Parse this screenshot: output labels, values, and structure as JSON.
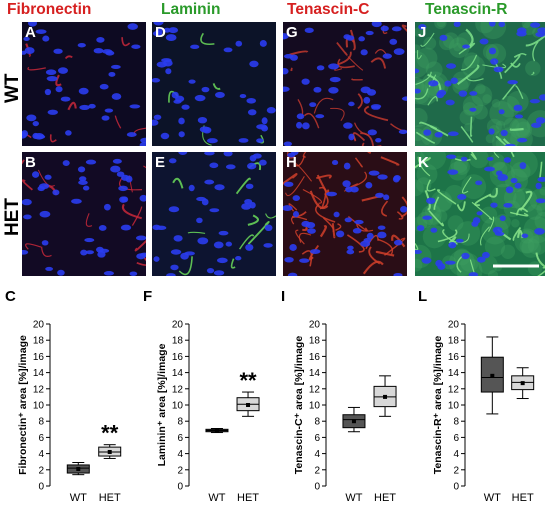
{
  "headers": [
    {
      "text": "Fibronectin",
      "color": "#d62020"
    },
    {
      "text": "Laminin",
      "color": "#2a9a2a"
    },
    {
      "text": "Tenascin-C",
      "color": "#d62020"
    },
    {
      "text": "Tenascin-R",
      "color": "#2a9a2a"
    }
  ],
  "row_labels": [
    "WT",
    "HET"
  ],
  "image_panels": {
    "top": [
      "A",
      "D",
      "G",
      "J"
    ],
    "bottom": [
      "B",
      "E",
      "H",
      "K"
    ]
  },
  "plot_letters": [
    "C",
    "F",
    "I",
    "L"
  ],
  "chart_data": [
    {
      "type": "box",
      "ylabel": "Fibronectin⁺ area [%]/image",
      "ylim": [
        0,
        20
      ],
      "yticks": [
        0,
        2,
        4,
        6,
        8,
        10,
        12,
        14,
        16,
        18,
        20
      ],
      "categories": [
        "WT",
        "HET"
      ],
      "boxes": [
        {
          "min": 1.4,
          "q1": 1.6,
          "median": 2.2,
          "mean": 2.1,
          "q3": 2.6,
          "max": 2.9,
          "fill": "#555555"
        },
        {
          "min": 3.4,
          "q1": 3.7,
          "median": 4.2,
          "mean": 4.2,
          "q3": 4.8,
          "max": 5.1,
          "fill": "#d8d8d8"
        }
      ],
      "significance": {
        "category": "HET",
        "label": "**"
      }
    },
    {
      "type": "box",
      "ylabel": "Laminin⁺ area [%]/image",
      "ylim": [
        0,
        20
      ],
      "yticks": [
        0,
        2,
        4,
        6,
        8,
        10,
        12,
        14,
        16,
        18,
        20
      ],
      "categories": [
        "WT",
        "HET"
      ],
      "boxes": [
        {
          "min": 6.6,
          "q1": 6.7,
          "median": 6.85,
          "mean": 6.85,
          "q3": 7.0,
          "max": 7.1,
          "fill": "#555555"
        },
        {
          "min": 8.6,
          "q1": 9.3,
          "median": 10.1,
          "mean": 10.0,
          "q3": 10.9,
          "max": 11.6,
          "fill": "#d8d8d8"
        }
      ],
      "significance": {
        "category": "HET",
        "label": "**"
      }
    },
    {
      "type": "box",
      "ylabel": "Tenascin-C⁺ area [%]/image",
      "ylim": [
        0,
        20
      ],
      "yticks": [
        0,
        2,
        4,
        6,
        8,
        10,
        12,
        14,
        16,
        18,
        20
      ],
      "categories": [
        "WT",
        "HET"
      ],
      "boxes": [
        {
          "min": 6.7,
          "q1": 7.2,
          "median": 8.2,
          "mean": 8.0,
          "q3": 8.8,
          "max": 9.7,
          "fill": "#555555"
        },
        {
          "min": 8.6,
          "q1": 9.8,
          "median": 11.0,
          "mean": 11.0,
          "q3": 12.3,
          "max": 13.6,
          "fill": "#d8d8d8"
        }
      ]
    },
    {
      "type": "box",
      "ylabel": "Tenascin-R⁺ area [%]/image",
      "ylim": [
        0,
        20
      ],
      "yticks": [
        0,
        2,
        4,
        6,
        8,
        10,
        12,
        14,
        16,
        18,
        20
      ],
      "categories": [
        "WT",
        "HET"
      ],
      "boxes": [
        {
          "min": 8.9,
          "q1": 11.6,
          "median": 13.4,
          "mean": 13.6,
          "q3": 15.9,
          "max": 18.4,
          "fill": "#555555"
        },
        {
          "min": 10.8,
          "q1": 11.9,
          "median": 12.8,
          "mean": 12.7,
          "q3": 13.6,
          "max": 14.6,
          "fill": "#d8d8d8"
        }
      ]
    }
  ]
}
